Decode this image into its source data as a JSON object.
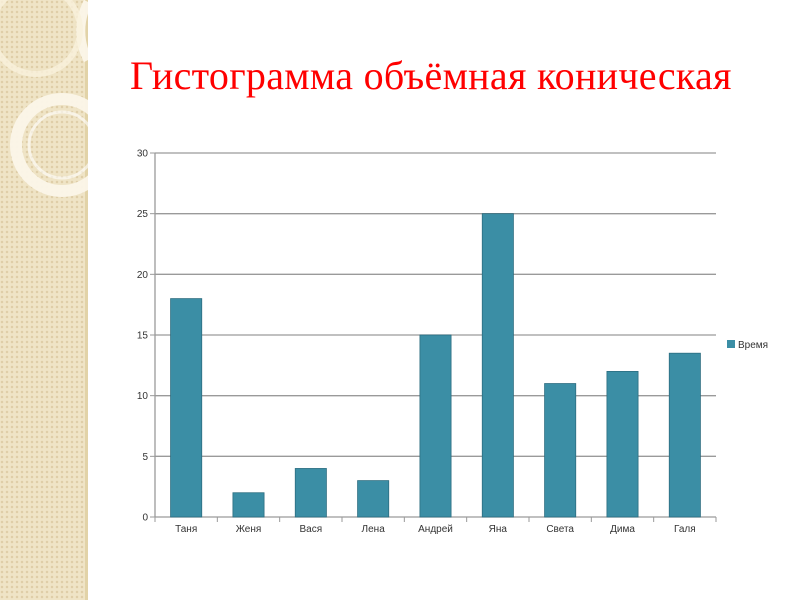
{
  "slide": {
    "title": "Гистограмма объёмная коническая"
  },
  "colors": {
    "title": "#ff0000",
    "bar": "#3b8ea5",
    "bar_stroke": "#2c6d80",
    "grid": "#9a9a9a",
    "axis_text": "#333333",
    "side_panel": "#efe4c6"
  },
  "chart_data": {
    "type": "bar",
    "title": "",
    "xlabel": "",
    "ylabel": "",
    "categories": [
      "Таня",
      "Женя",
      "Вася",
      "Лена",
      "Андрей",
      "Яна",
      "Света",
      "Дима",
      "Галя"
    ],
    "series": [
      {
        "name": "Время",
        "values": [
          18,
          2,
          4,
          3,
          15,
          25,
          11,
          12,
          13.5
        ]
      }
    ],
    "ylim": [
      0,
      30
    ],
    "yticks": [
      0,
      5,
      10,
      15,
      20,
      25,
      30
    ],
    "grid": true,
    "legend": "right"
  }
}
